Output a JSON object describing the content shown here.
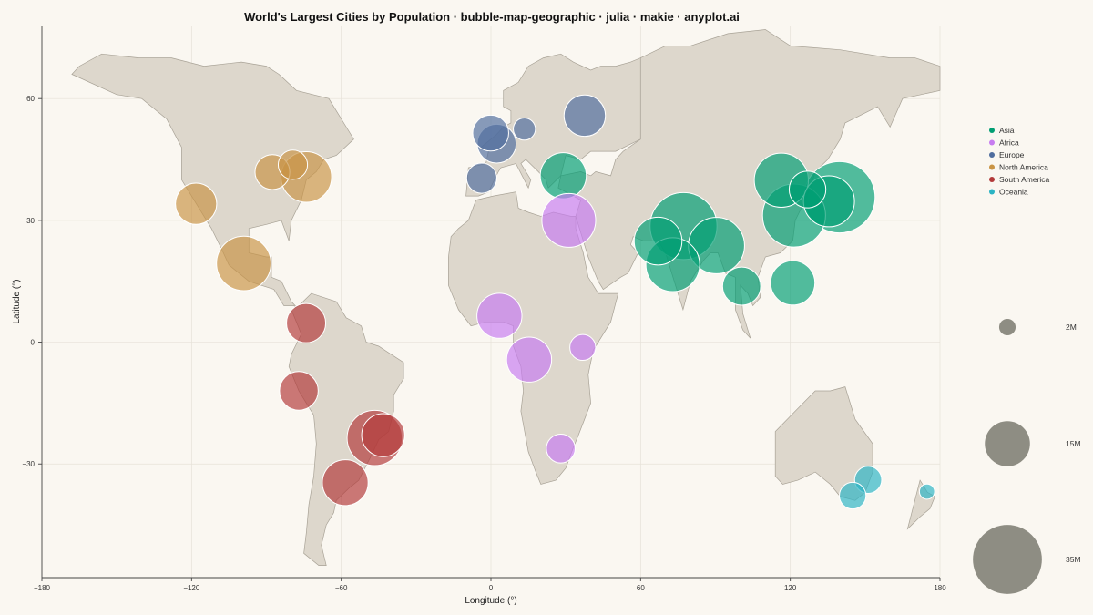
{
  "chart_data": {
    "type": "scatter",
    "title": "World's Largest Cities by Population · bubble-map-geographic · julia · makie · anyplot.ai",
    "xlabel": "Longitude (°)",
    "ylabel": "Latitude (°)",
    "xlim": [
      -180,
      180
    ],
    "ylim": [
      -58,
      78
    ],
    "x_ticks": [
      -180,
      -120,
      -60,
      0,
      60,
      120,
      180
    ],
    "y_ticks": [
      -30,
      0,
      30,
      60
    ],
    "x_tick_labels": [
      "−180",
      "−120",
      "−60",
      "0",
      "60",
      "120",
      "180"
    ],
    "y_tick_labels": [
      "−30",
      "0",
      "30",
      "60"
    ],
    "grid": true,
    "legend_position": "right",
    "series": [
      {
        "name": "Asia",
        "color": "#009e73",
        "points": [
          {
            "x": 139.7,
            "y": 35.7,
            "size": 37.4
          },
          {
            "x": 77.2,
            "y": 28.6,
            "size": 32.9
          },
          {
            "x": 121.5,
            "y": 31.2,
            "size": 29.2
          },
          {
            "x": 90.4,
            "y": 23.8,
            "size": 23.2
          },
          {
            "x": 116.4,
            "y": 39.9,
            "size": 21.5
          },
          {
            "x": 72.9,
            "y": 19.1,
            "size": 21.3
          },
          {
            "x": 135.5,
            "y": 34.7,
            "size": 19.1
          },
          {
            "x": 121.0,
            "y": 14.6,
            "size": 14.4
          },
          {
            "x": 67.0,
            "y": 24.9,
            "size": 16.8
          },
          {
            "x": 100.5,
            "y": 13.8,
            "size": 10.7
          },
          {
            "x": 126.9,
            "y": 37.6,
            "size": 9.9
          },
          {
            "x": 29.0,
            "y": 41.0,
            "size": 15.6
          }
        ]
      },
      {
        "name": "Africa",
        "color": "#c77cf0",
        "points": [
          {
            "x": 31.2,
            "y": 30.0,
            "size": 21.3
          },
          {
            "x": 3.4,
            "y": 6.5,
            "size": 14.9
          },
          {
            "x": 15.3,
            "y": -4.3,
            "size": 14.9
          },
          {
            "x": 36.8,
            "y": -1.3,
            "size": 4.9
          },
          {
            "x": 28.0,
            "y": -26.2,
            "size": 6.1
          }
        ]
      },
      {
        "name": "Europe",
        "color": "#4f6d9e",
        "points": [
          {
            "x": 37.6,
            "y": 55.8,
            "size": 12.6
          },
          {
            "x": 2.3,
            "y": 48.9,
            "size": 11.1
          },
          {
            "x": -0.1,
            "y": 51.5,
            "size": 9.5
          },
          {
            "x": -3.7,
            "y": 40.4,
            "size": 6.7
          },
          {
            "x": 13.4,
            "y": 52.5,
            "size": 3.6
          }
        ]
      },
      {
        "name": "North America",
        "color": "#c99445",
        "points": [
          {
            "x": -99.1,
            "y": 19.4,
            "size": 21.8
          },
          {
            "x": -74.0,
            "y": 40.7,
            "size": 18.8
          },
          {
            "x": -118.2,
            "y": 34.1,
            "size": 12.5
          },
          {
            "x": -87.6,
            "y": 41.9,
            "size": 8.9
          },
          {
            "x": -79.4,
            "y": 43.7,
            "size": 6.3
          }
        ]
      },
      {
        "name": "South America",
        "color": "#b23a3a",
        "points": [
          {
            "x": -46.6,
            "y": -23.6,
            "size": 22.4
          },
          {
            "x": -58.4,
            "y": -34.6,
            "size": 15.4
          },
          {
            "x": -43.2,
            "y": -22.9,
            "size": 13.6
          },
          {
            "x": -77.0,
            "y": -12.0,
            "size": 11.0
          },
          {
            "x": -74.1,
            "y": 4.7,
            "size": 11.3
          }
        ]
      },
      {
        "name": "Oceania",
        "color": "#2bb4c4",
        "points": [
          {
            "x": 151.2,
            "y": -33.9,
            "size": 5.4
          },
          {
            "x": 145.0,
            "y": -37.8,
            "size": 5.2
          },
          {
            "x": 174.8,
            "y": -36.8,
            "size": 1.7
          }
        ]
      }
    ],
    "size_legend": [
      {
        "label": "2M",
        "value": 2
      },
      {
        "label": "15M",
        "value": 15
      },
      {
        "label": "35M",
        "value": 35
      }
    ],
    "land_color": "#ddd7cc",
    "background_color": "#faf7f1",
    "size_legend_color": "#8e8d83"
  }
}
